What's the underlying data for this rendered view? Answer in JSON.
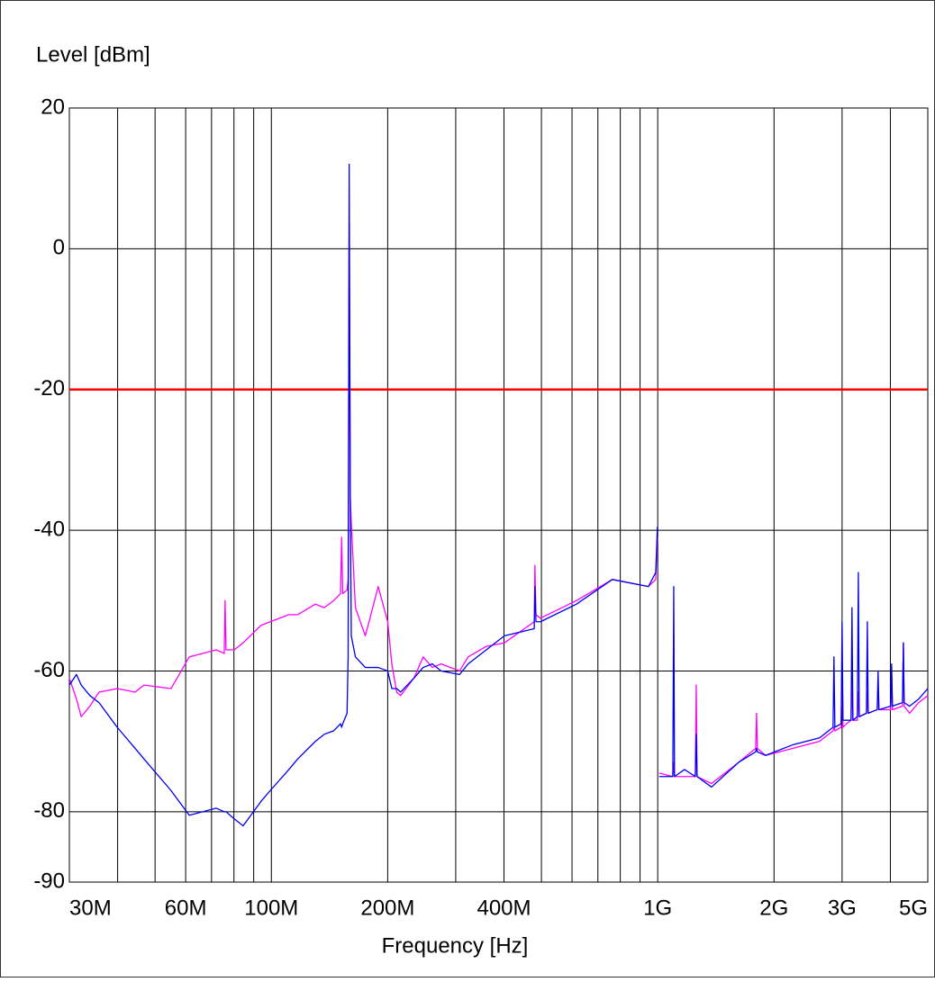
{
  "chart_data": {
    "type": "line",
    "ylabel": "Level [dBm]",
    "xlabel": "Frequency [Hz]",
    "xscale": "log",
    "xlim": [
      30000000.0,
      5000000000.0
    ],
    "ylim": [
      -90,
      20
    ],
    "yticks": [
      20,
      0,
      -20,
      -40,
      -60,
      -80,
      -90
    ],
    "xticks": [
      {
        "value": 30000000.0,
        "label": "30M"
      },
      {
        "value": 60000000.0,
        "label": "60M"
      },
      {
        "value": 100000000.0,
        "label": "100M"
      },
      {
        "value": 200000000.0,
        "label": "200M"
      },
      {
        "value": 400000000.0,
        "label": "400M"
      },
      {
        "value": 1000000000.0,
        "label": "1G"
      },
      {
        "value": 2000000000.0,
        "label": "2G"
      },
      {
        "value": 3000000000.0,
        "label": "3G"
      },
      {
        "value": 5000000000.0,
        "label": "5G"
      }
    ],
    "xgrid_minor": [
      40000000.0,
      50000000.0,
      70000000.0,
      80000000.0,
      90000000.0,
      300000000.0,
      500000000.0,
      600000000.0,
      700000000.0,
      800000000.0,
      900000000.0,
      4000000000.0
    ],
    "grid": true,
    "reference_lines": [
      {
        "value": -20,
        "color": "#ff0000"
      }
    ],
    "x": [
      30000000.0,
      31300000.0,
      32200000.0,
      33900000.0,
      35800000.0,
      39900000.0,
      44400000.0,
      46800000.0,
      55000000.0,
      61300000.0,
      72000000.0,
      75500000.0,
      75900000.0,
      76300000.0,
      80100000.0,
      84500000.0,
      94100000.0,
      99300000.0,
      111000000.0,
      117000000.0,
      130000000.0,
      137000000.0,
      145000000.0,
      151000000.0,
      152000000.0,
      153000000.0,
      157000000.0,
      158000000.0,
      159000000.0,
      160000000.0,
      161000000.0,
      165000000.0,
      175000000.0,
      179000000.0,
      189000000.0,
      200000000.0,
      205000000.0,
      211000000.0,
      216000000.0,
      234000000.0,
      247000000.0,
      261000000.0,
      275000000.0,
      307000000.0,
      323000000.0,
      360000000.0,
      401000000.0,
      479000000.0,
      481000000.0,
      484000000.0,
      497000000.0,
      616000000.0,
      763000000.0,
      946000000.0,
      988000000.0,
      998000000.0,
      1004000000.0,
      1009000000.0,
      1094000000.0,
      1100000000.0,
      1105000000.0,
      1173000000.0,
      1251000000.0,
      1258000000.0,
      1264000000.0,
      1378000000.0,
      1618000000.0,
      1792000000.0,
      1802000000.0,
      1811000000.0,
      1902000000.0,
      2233000000.0,
      2623000000.0,
      2843000000.0,
      2858000000.0,
      2874000000.0,
      2984000000.0,
      3000000000.0,
      3016000000.0,
      3081000000.0,
      3165000000.0,
      3182000000.0,
      3200000000.0,
      3286000000.0,
      3305000000.0,
      3323000000.0,
      3469000000.0,
      3487000000.0,
      3505000000.0,
      3699000000.0,
      3718000000.0,
      3737000000.0,
      4009000000.0,
      4030000000.0,
      4050000000.0,
      4300000000.0,
      4323000000.0,
      4343000000.0,
      4486000000.0,
      4733000000.0,
      5000000000.0
    ],
    "series": [
      {
        "color": "#ff00ff",
        "values": [
          -61,
          -64,
          -66.5,
          -65,
          -63,
          -62.5,
          -63,
          -62,
          -62.5,
          -58,
          -57,
          -57.5,
          -50,
          -57,
          -57,
          -56,
          -53.5,
          -53,
          -52,
          -52,
          -50.5,
          -51,
          -50,
          -49,
          -41,
          -49,
          -48.5,
          -47,
          4,
          -35,
          -39,
          -51,
          -55,
          -53,
          -48,
          -53,
          -59,
          -63,
          -63.5,
          -61,
          -58,
          -59.5,
          -59,
          -60,
          -58,
          -56.5,
          -56,
          -53,
          -45,
          -52,
          -52.5,
          -50,
          -47,
          -48,
          -47,
          -41,
          null,
          -74.5,
          -75,
          -73,
          -75,
          -75,
          -75,
          -62,
          -75,
          -76,
          -73,
          -71,
          -66,
          -71,
          -72,
          -71,
          -70,
          -68.5,
          -68,
          -68.5,
          -68,
          -58,
          -68,
          -67.5,
          -67,
          -61,
          -67,
          -67,
          -63,
          -66.5,
          -66,
          -63,
          -66,
          -65.5,
          -62,
          -65.5,
          -65.5,
          -60,
          -65.5,
          -65,
          -56,
          -65,
          -66,
          -64.5,
          -63.5
        ]
      },
      {
        "color": "#0000ee",
        "values": [
          -62,
          -60.5,
          -62,
          -63.5,
          -64.5,
          -68,
          -71,
          -72.5,
          -77,
          -80.5,
          -79.5,
          -80,
          -80,
          -80,
          -81,
          -82,
          -78.5,
          -77,
          -74,
          -72.5,
          -70,
          -69,
          -68.5,
          -67.5,
          -68,
          -67.5,
          -66,
          -58,
          12,
          -35,
          -55,
          -58,
          -59.5,
          -59.5,
          -59.5,
          -60,
          -62.5,
          -62.5,
          -63,
          -61,
          -59.5,
          -59,
          -60,
          -60.5,
          -59,
          -57,
          -55,
          -54,
          -48,
          -53,
          -53,
          -50.5,
          -47,
          -48,
          -46,
          -39.5,
          null,
          -75,
          -75,
          -48,
          -75,
          -74,
          -75,
          -69,
          -75,
          -76.5,
          -73,
          -71.5,
          -71,
          -71.5,
          -72,
          -70.5,
          -69.5,
          -68,
          -58,
          -68,
          -67.5,
          -53,
          -67,
          -67,
          -67,
          -51,
          -67,
          -66.5,
          -46,
          -66.5,
          -66,
          -53,
          -66,
          -65.5,
          -60,
          -65.5,
          -65,
          -59,
          -65,
          -64.5,
          -56,
          -64.5,
          -65,
          -64,
          -62.5
        ]
      }
    ]
  }
}
